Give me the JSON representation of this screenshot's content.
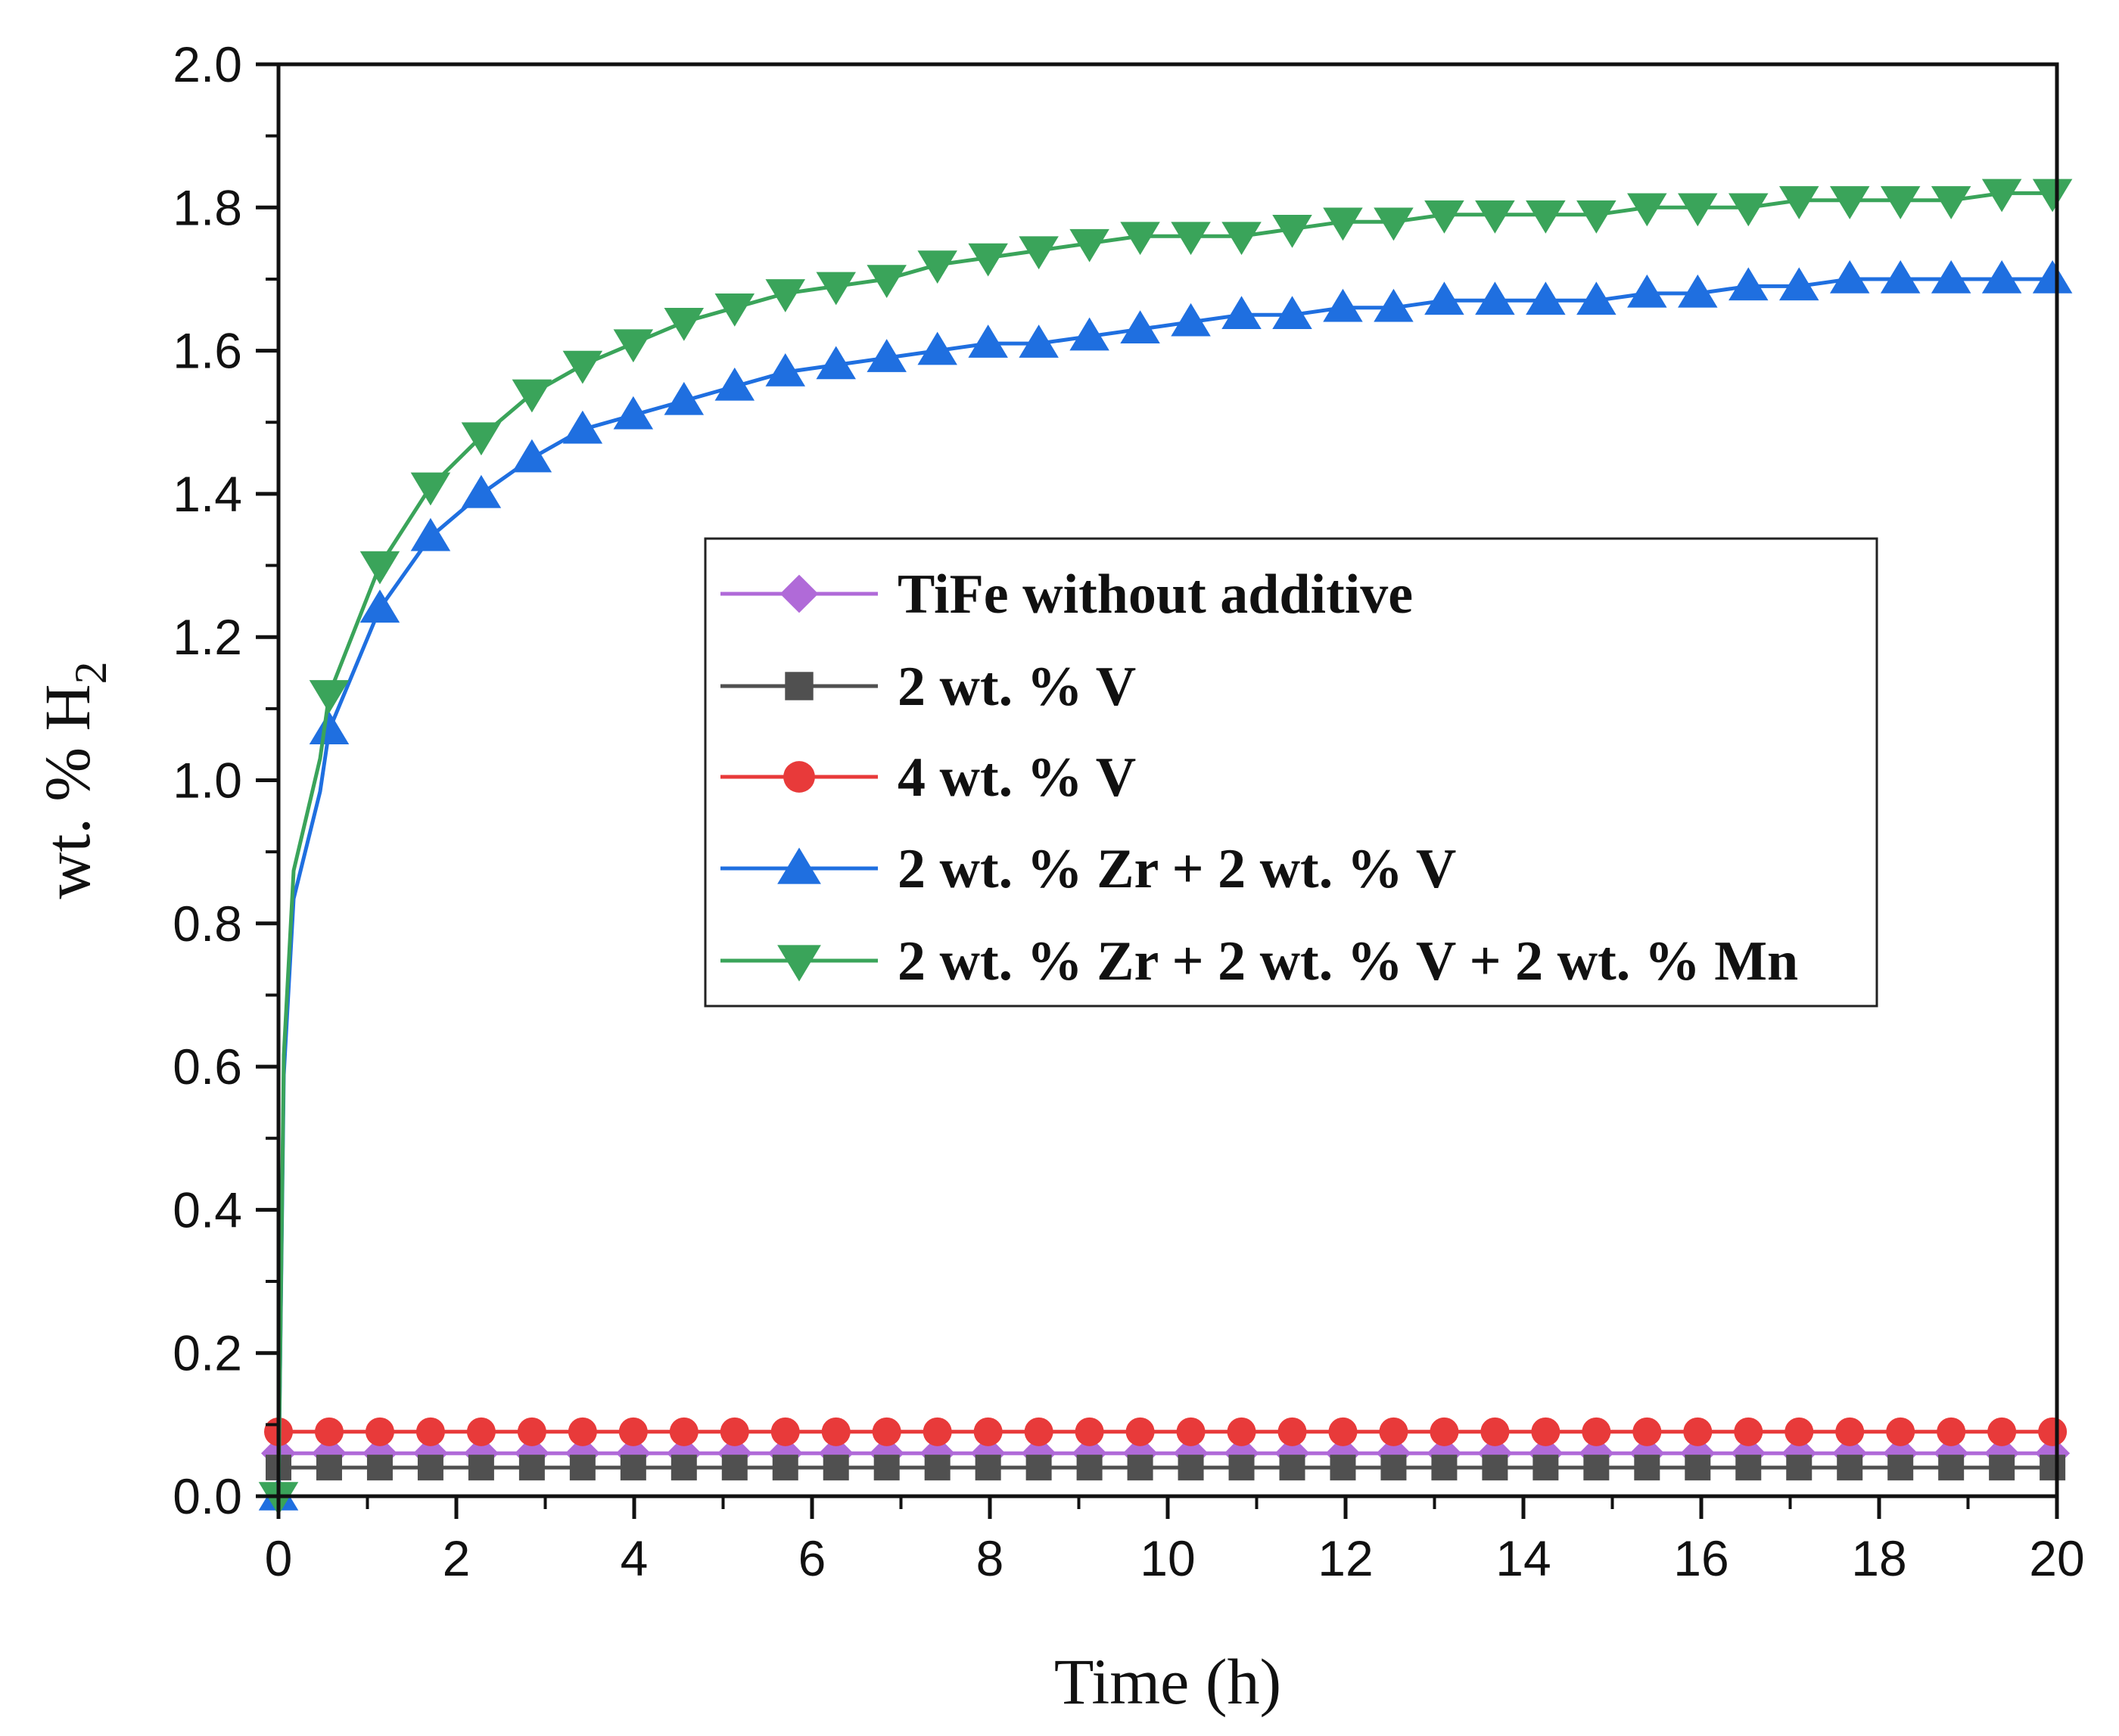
{
  "chart_data": {
    "type": "line",
    "title": "",
    "xlabel": "Time (h)",
    "ylabel_prefix": "wt. % H",
    "ylabel_subscript": "2",
    "xlim": [
      0,
      20
    ],
    "ylim": [
      0,
      2.0
    ],
    "x_ticks": [
      "0",
      "2",
      "4",
      "6",
      "8",
      "10",
      "12",
      "14",
      "16",
      "18",
      "20"
    ],
    "y_ticks": [
      "0.0",
      "0.2",
      "0.4",
      "0.6",
      "0.8",
      "1.0",
      "1.2",
      "1.4",
      "1.6",
      "1.8",
      "2.0"
    ],
    "legend_position": "center-right",
    "series": [
      {
        "name": "TiFe without additive",
        "color": "#b06ad8",
        "marker": "diamond",
        "x": [
          0,
          0.57,
          1.14,
          1.71,
          2.28,
          2.85,
          3.42,
          3.99,
          4.56,
          5.13,
          5.7,
          6.27,
          6.84,
          7.41,
          7.98,
          8.55,
          9.12,
          9.69,
          10.26,
          10.83,
          11.4,
          11.97,
          12.54,
          13.11,
          13.68,
          14.25,
          14.82,
          15.39,
          15.96,
          16.53,
          17.1,
          17.67,
          18.24,
          18.81,
          19.38,
          19.95
        ],
        "y": [
          0.06,
          0.06,
          0.06,
          0.06,
          0.06,
          0.06,
          0.06,
          0.06,
          0.06,
          0.06,
          0.06,
          0.06,
          0.06,
          0.06,
          0.06,
          0.06,
          0.06,
          0.06,
          0.06,
          0.06,
          0.06,
          0.06,
          0.06,
          0.06,
          0.06,
          0.06,
          0.06,
          0.06,
          0.06,
          0.06,
          0.06,
          0.06,
          0.06,
          0.06,
          0.06,
          0.06
        ]
      },
      {
        "name": "2 wt. % V",
        "color": "#505050",
        "marker": "square",
        "x": [
          0,
          0.57,
          1.14,
          1.71,
          2.28,
          2.85,
          3.42,
          3.99,
          4.56,
          5.13,
          5.7,
          6.27,
          6.84,
          7.41,
          7.98,
          8.55,
          9.12,
          9.69,
          10.26,
          10.83,
          11.4,
          11.97,
          12.54,
          13.11,
          13.68,
          14.25,
          14.82,
          15.39,
          15.96,
          16.53,
          17.1,
          17.67,
          18.24,
          18.81,
          19.38,
          19.95
        ],
        "y": [
          0.04,
          0.04,
          0.04,
          0.04,
          0.04,
          0.04,
          0.04,
          0.04,
          0.04,
          0.04,
          0.04,
          0.04,
          0.04,
          0.04,
          0.04,
          0.04,
          0.04,
          0.04,
          0.04,
          0.04,
          0.04,
          0.04,
          0.04,
          0.04,
          0.04,
          0.04,
          0.04,
          0.04,
          0.04,
          0.04,
          0.04,
          0.04,
          0.04,
          0.04,
          0.04,
          0.04
        ]
      },
      {
        "name": "4 wt. % V",
        "color": "#e83a3a",
        "marker": "circle",
        "x": [
          0,
          0.57,
          1.14,
          1.71,
          2.28,
          2.85,
          3.42,
          3.99,
          4.56,
          5.13,
          5.7,
          6.27,
          6.84,
          7.41,
          7.98,
          8.55,
          9.12,
          9.69,
          10.26,
          10.83,
          11.4,
          11.97,
          12.54,
          13.11,
          13.68,
          14.25,
          14.82,
          15.39,
          15.96,
          16.53,
          17.1,
          17.67,
          18.24,
          18.81,
          19.38,
          19.95
        ],
        "y": [
          0.09,
          0.09,
          0.09,
          0.09,
          0.09,
          0.09,
          0.09,
          0.09,
          0.09,
          0.09,
          0.09,
          0.09,
          0.09,
          0.09,
          0.09,
          0.09,
          0.09,
          0.09,
          0.09,
          0.09,
          0.09,
          0.09,
          0.09,
          0.09,
          0.09,
          0.09,
          0.09,
          0.09,
          0.09,
          0.09,
          0.09,
          0.09,
          0.09,
          0.09,
          0.09,
          0.09
        ]
      },
      {
        "name": "2 wt. % Zr + 2 wt. % V",
        "color": "#1f6fe0",
        "marker": "triangle-up",
        "x": [
          0,
          0.57,
          1.14,
          1.71,
          2.28,
          2.85,
          3.42,
          3.99,
          4.56,
          5.13,
          5.7,
          6.27,
          6.84,
          7.41,
          7.98,
          8.55,
          9.12,
          9.69,
          10.26,
          10.83,
          11.4,
          11.97,
          12.54,
          13.11,
          13.68,
          14.25,
          14.82,
          15.39,
          15.96,
          16.53,
          17.1,
          17.67,
          18.24,
          18.81,
          19.38,
          19.95
        ],
        "y": [
          0.0,
          1.07,
          1.24,
          1.34,
          1.4,
          1.45,
          1.49,
          1.51,
          1.53,
          1.55,
          1.57,
          1.58,
          1.59,
          1.6,
          1.61,
          1.61,
          1.62,
          1.63,
          1.64,
          1.65,
          1.65,
          1.66,
          1.66,
          1.67,
          1.67,
          1.67,
          1.67,
          1.68,
          1.68,
          1.69,
          1.69,
          1.7,
          1.7,
          1.7,
          1.7,
          1.7
        ]
      },
      {
        "name": "2 wt. % Zr + 2 wt. % V + 2 wt. % Mn",
        "color": "#3aa45a",
        "marker": "triangle-down",
        "x": [
          0,
          0.57,
          1.14,
          1.71,
          2.28,
          2.85,
          3.42,
          3.99,
          4.56,
          5.13,
          5.7,
          6.27,
          6.84,
          7.41,
          7.98,
          8.55,
          9.12,
          9.69,
          10.26,
          10.83,
          11.4,
          11.97,
          12.54,
          13.11,
          13.68,
          14.25,
          14.82,
          15.39,
          15.96,
          16.53,
          17.1,
          17.67,
          18.24,
          18.81,
          19.38,
          19.95
        ],
        "y": [
          0.0,
          1.12,
          1.3,
          1.41,
          1.48,
          1.54,
          1.58,
          1.61,
          1.64,
          1.66,
          1.68,
          1.69,
          1.7,
          1.72,
          1.73,
          1.74,
          1.75,
          1.76,
          1.76,
          1.76,
          1.77,
          1.78,
          1.78,
          1.79,
          1.79,
          1.79,
          1.79,
          1.8,
          1.8,
          1.8,
          1.81,
          1.81,
          1.81,
          1.81,
          1.82,
          1.82
        ]
      }
    ]
  }
}
